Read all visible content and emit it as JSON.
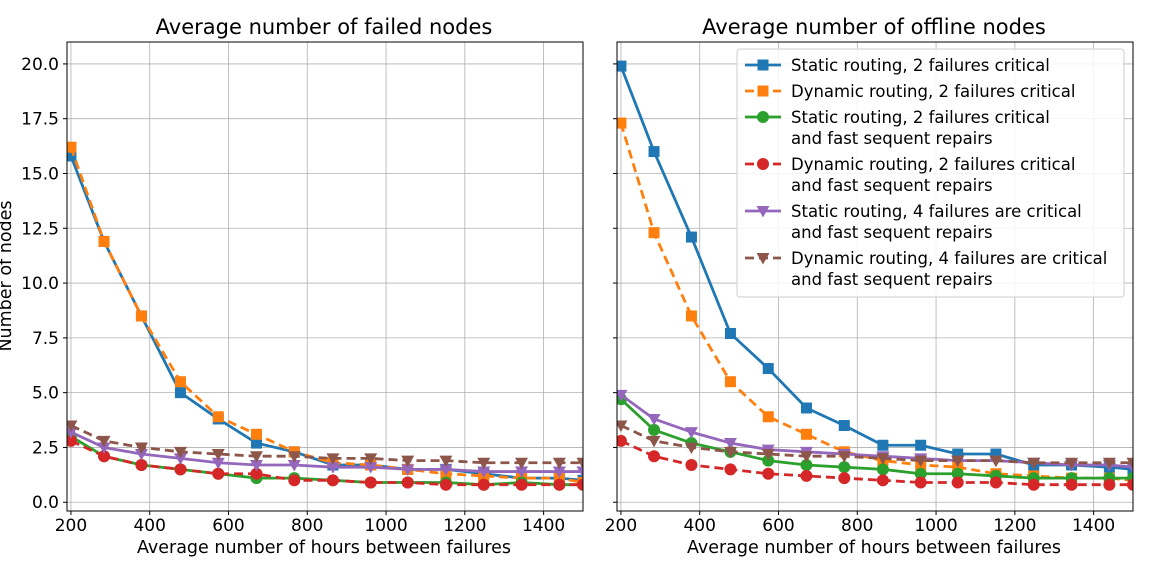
{
  "chart_data": [
    {
      "type": "line",
      "title": "Average number of failed nodes",
      "xlabel": "Average number of hours between failures",
      "ylabel": "Number of nodes",
      "xlim": [
        190,
        1500
      ],
      "ylim": [
        -0.4,
        21.0
      ],
      "xticks": [
        200,
        400,
        600,
        800,
        1000,
        1200,
        1400
      ],
      "xtick_labels": [
        "200",
        "400",
        "600",
        "800",
        "1000",
        "1200",
        "1400"
      ],
      "yticks": [
        0,
        2.5,
        5,
        7.5,
        10,
        12.5,
        15,
        17.5,
        20
      ],
      "ytick_labels": [
        "0.0",
        "2.5",
        "5.0",
        "7.5",
        "10.0",
        "12.5",
        "15.0",
        "17.5",
        "20.0"
      ],
      "grid": true,
      "x": [
        200,
        284,
        379,
        478,
        574,
        671,
        767,
        865,
        961,
        1055,
        1152,
        1248,
        1344,
        1440,
        1500
      ],
      "series": [
        {
          "name": "Static routing, 2 failures critical",
          "color": "#1f77b4",
          "linestyle": "solid",
          "marker": "square",
          "values": [
            15.8,
            11.9,
            8.5,
            5.0,
            3.8,
            2.7,
            2.3,
            1.7,
            1.7,
            1.5,
            1.5,
            1.3,
            1.1,
            1.1,
            1.0
          ]
        },
        {
          "name": "Dynamic routing, 2 failures critical",
          "color": "#ff7f0e",
          "linestyle": "dashed",
          "marker": "square",
          "values": [
            16.2,
            11.9,
            8.5,
            5.5,
            3.9,
            3.1,
            2.3,
            1.8,
            1.7,
            1.5,
            1.3,
            1.2,
            1.1,
            1.1,
            0.9
          ]
        },
        {
          "name": "Static routing, 2 failures critical\nand fast sequent repairs",
          "color": "#2ca02c",
          "linestyle": "solid",
          "marker": "circle",
          "values": [
            3.0,
            2.1,
            1.7,
            1.5,
            1.3,
            1.1,
            1.1,
            1.0,
            0.9,
            0.9,
            0.9,
            0.8,
            0.9,
            0.8,
            0.8
          ]
        },
        {
          "name": "Dynamic routing, 2 failures critical\nand fast sequent repairs",
          "color": "#d62728",
          "linestyle": "dashed",
          "marker": "circle",
          "values": [
            2.8,
            2.1,
            1.7,
            1.5,
            1.3,
            1.3,
            1.0,
            1.0,
            0.9,
            0.9,
            0.8,
            0.8,
            0.8,
            0.8,
            0.8
          ]
        },
        {
          "name": "Static routing, 4 failures are critical\nand fast sequent repairs",
          "color": "#9467bd",
          "linestyle": "solid",
          "marker": "triangle-down",
          "values": [
            3.2,
            2.5,
            2.2,
            2.0,
            1.8,
            1.7,
            1.7,
            1.6,
            1.6,
            1.5,
            1.5,
            1.4,
            1.4,
            1.4,
            1.4
          ]
        },
        {
          "name": "Dynamic routing, 4 failures are critical\nand fast sequent repairs",
          "color": "#8c564b",
          "linestyle": "dashed",
          "marker": "triangle-down",
          "values": [
            3.5,
            2.8,
            2.5,
            2.3,
            2.2,
            2.1,
            2.1,
            2.0,
            2.0,
            1.9,
            1.9,
            1.8,
            1.8,
            1.8,
            1.8
          ]
        }
      ]
    },
    {
      "type": "line",
      "title": "Average number of offline nodes",
      "xlabel": "Average number of hours between failures",
      "ylabel": "",
      "xlim": [
        190,
        1500
      ],
      "ylim": [
        -0.4,
        21.0
      ],
      "xticks": [
        200,
        400,
        600,
        800,
        1000,
        1200,
        1400
      ],
      "xtick_labels": [
        "200",
        "400",
        "600",
        "800",
        "1000",
        "1200",
        "1400"
      ],
      "yticks": [
        0,
        2.5,
        5,
        7.5,
        10,
        12.5,
        15,
        17.5,
        20
      ],
      "ytick_labels": [],
      "grid": true,
      "legend": "top-right",
      "x": [
        200,
        284,
        379,
        478,
        574,
        671,
        767,
        865,
        961,
        1055,
        1152,
        1248,
        1344,
        1440,
        1500
      ],
      "series": [
        {
          "name": "Static routing, 2 failures critical",
          "color": "#1f77b4",
          "linestyle": "solid",
          "marker": "square",
          "values": [
            19.9,
            16.0,
            12.1,
            7.7,
            6.1,
            4.3,
            3.5,
            2.6,
            2.6,
            2.2,
            2.2,
            1.7,
            1.7,
            1.6,
            1.5
          ]
        },
        {
          "name": "Dynamic routing, 2 failures critical",
          "color": "#ff7f0e",
          "linestyle": "dashed",
          "marker": "square",
          "values": [
            17.3,
            12.3,
            8.5,
            5.5,
            3.9,
            3.1,
            2.3,
            1.9,
            1.7,
            1.6,
            1.3,
            1.2,
            1.1,
            1.1,
            1.0
          ]
        },
        {
          "name": "Static routing, 2 failures critical\nand fast sequent repairs",
          "color": "#2ca02c",
          "linestyle": "solid",
          "marker": "circle",
          "values": [
            4.7,
            3.3,
            2.7,
            2.3,
            1.9,
            1.7,
            1.6,
            1.5,
            1.3,
            1.3,
            1.2,
            1.1,
            1.1,
            1.1,
            1.1
          ]
        },
        {
          "name": "Dynamic routing, 2 failures critical\nand fast sequent repairs",
          "color": "#d62728",
          "linestyle": "dashed",
          "marker": "circle",
          "values": [
            2.8,
            2.1,
            1.7,
            1.5,
            1.3,
            1.2,
            1.1,
            1.0,
            0.9,
            0.9,
            0.9,
            0.8,
            0.8,
            0.8,
            0.8
          ]
        },
        {
          "name": "Static routing, 4 failures are critical\nand fast sequent repairs",
          "color": "#9467bd",
          "linestyle": "solid",
          "marker": "triangle-down",
          "values": [
            4.9,
            3.8,
            3.2,
            2.7,
            2.4,
            2.3,
            2.2,
            2.1,
            2.0,
            1.9,
            1.9,
            1.8,
            1.7,
            1.7,
            1.6
          ]
        },
        {
          "name": "Dynamic routing, 4 failures are critical\nand fast sequent repairs",
          "color": "#8c564b",
          "linestyle": "dashed",
          "marker": "triangle-down",
          "values": [
            3.5,
            2.8,
            2.5,
            2.3,
            2.2,
            2.1,
            2.1,
            2.0,
            1.9,
            1.9,
            1.9,
            1.8,
            1.8,
            1.8,
            1.8
          ]
        }
      ]
    }
  ]
}
